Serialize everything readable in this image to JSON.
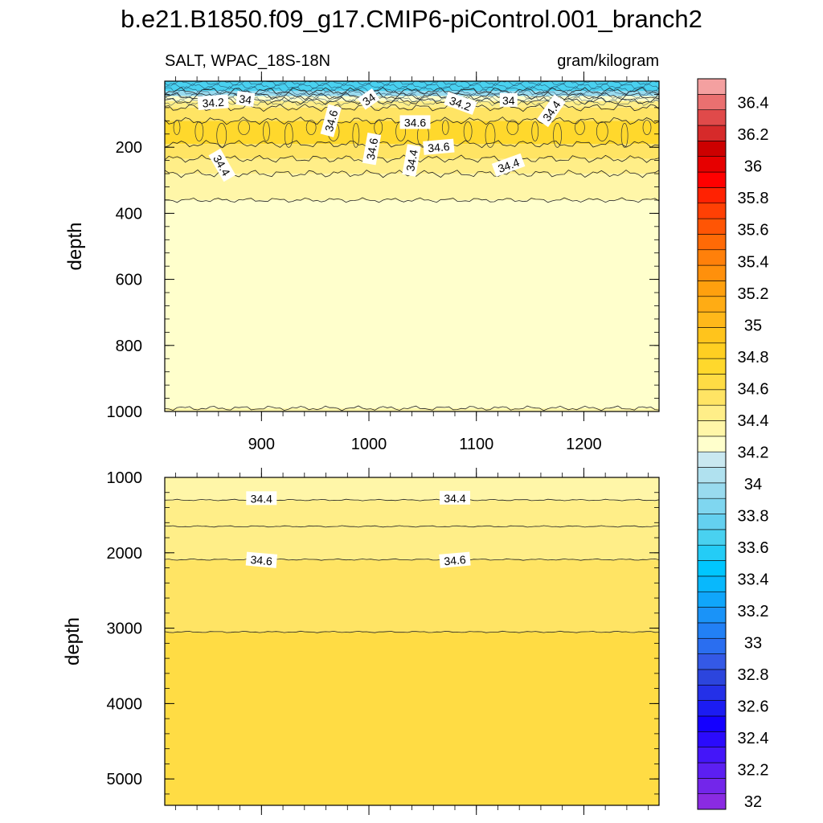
{
  "chart_data": {
    "type": "heatmap",
    "title": "b.e21.B1850.f09_g17.CMIP6-piControl.001_branch2",
    "left_string": "SALT, WPAC_18S-18N",
    "right_string": "gram/kilogram",
    "x_range": [
      810,
      1270
    ],
    "x_ticks": [
      "900",
      "1000",
      "1100",
      "1200"
    ],
    "x_tick_values": [
      900,
      1000,
      1100,
      1200
    ],
    "panels": [
      {
        "ylabel": "depth",
        "ylim": [
          0,
          1000
        ],
        "y_ticks": [
          "200",
          "400",
          "600",
          "800",
          "1000"
        ],
        "y_tick_values": [
          200,
          400,
          600,
          800,
          1000
        ],
        "bands": [
          {
            "top": 0,
            "bottom": 30,
            "value": 33.7
          },
          {
            "top": 30,
            "bottom": 45,
            "value": 34.05
          },
          {
            "top": 45,
            "bottom": 60,
            "value": 34.35
          },
          {
            "top": 60,
            "bottom": 80,
            "value": 34.5
          },
          {
            "top": 80,
            "bottom": 120,
            "value": 34.65
          },
          {
            "top": 120,
            "bottom": 190,
            "value": 34.8
          },
          {
            "top": 190,
            "bottom": 235,
            "value": 34.65
          },
          {
            "top": 235,
            "bottom": 280,
            "value": 34.55
          },
          {
            "top": 280,
            "bottom": 360,
            "value": 34.45
          },
          {
            "top": 360,
            "bottom": 990,
            "value": 34.3
          },
          {
            "top": 990,
            "bottom": 1000,
            "value": 34.45
          }
        ],
        "contour_labels": [
          {
            "text": "34.2",
            "x": 855,
            "depth": 65,
            "angle": -4
          },
          {
            "text": "34",
            "x": 885,
            "depth": 55,
            "angle": 8
          },
          {
            "text": "34.6",
            "x": 965,
            "depth": 120,
            "angle": -75
          },
          {
            "text": "34",
            "x": 1000,
            "depth": 55,
            "angle": -35
          },
          {
            "text": "34.6",
            "x": 1043,
            "depth": 125,
            "angle": 0
          },
          {
            "text": "34.2",
            "x": 1085,
            "depth": 68,
            "angle": 20
          },
          {
            "text": "34",
            "x": 1130,
            "depth": 58,
            "angle": 0
          },
          {
            "text": "34.4",
            "x": 1170,
            "depth": 90,
            "angle": -55
          },
          {
            "text": "34.6",
            "x": 1003,
            "depth": 205,
            "angle": -80
          },
          {
            "text": "34.6",
            "x": 1065,
            "depth": 200,
            "angle": -5
          },
          {
            "text": "34.4",
            "x": 1040,
            "depth": 240,
            "angle": -80
          },
          {
            "text": "34.4",
            "x": 1130,
            "depth": 255,
            "angle": -20
          },
          {
            "text": "34.4",
            "x": 863,
            "depth": 255,
            "angle": 60
          }
        ]
      },
      {
        "ylabel": "depth",
        "ylim": [
          1000,
          5350
        ],
        "y_ticks": [
          "1000",
          "2000",
          "3000",
          "4000",
          "5000"
        ],
        "y_tick_values": [
          1000,
          2000,
          3000,
          4000,
          5000
        ],
        "bands": [
          {
            "top": 1000,
            "bottom": 1300,
            "value": 34.45
          },
          {
            "top": 1300,
            "bottom": 1650,
            "value": 34.55
          },
          {
            "top": 1650,
            "bottom": 2090,
            "value": 34.55
          },
          {
            "top": 2090,
            "bottom": 3050,
            "value": 34.65
          },
          {
            "top": 3050,
            "bottom": 5350,
            "value": 34.7
          }
        ],
        "contour_labels": [
          {
            "text": "34.4",
            "x": 900,
            "depth": 1280,
            "angle": 0
          },
          {
            "text": "34.4",
            "x": 1080,
            "depth": 1275,
            "angle": 0
          },
          {
            "text": "34.6",
            "x": 900,
            "depth": 2100,
            "angle": 5
          },
          {
            "text": "34.6",
            "x": 1080,
            "depth": 2100,
            "angle": -5
          }
        ]
      }
    ],
    "colorbar": {
      "min": 32,
      "max": 36.6,
      "step": 0.1,
      "tick_labels": [
        "32",
        "32.2",
        "32.4",
        "32.6",
        "32.8",
        "33",
        "33.2",
        "33.4",
        "33.6",
        "33.8",
        "34",
        "34.2",
        "34.4",
        "34.6",
        "34.8",
        "35",
        "35.2",
        "35.4",
        "35.6",
        "35.8",
        "36",
        "36.2",
        "36.4"
      ],
      "tick_values": [
        32,
        32.2,
        32.4,
        32.6,
        32.8,
        33,
        33.2,
        33.4,
        33.6,
        33.8,
        34,
        34.2,
        34.4,
        34.6,
        34.8,
        35,
        35.2,
        35.4,
        35.6,
        35.8,
        36,
        36.2,
        36.4
      ],
      "colors": [
        "#8a2be2",
        "#7326ea",
        "#5c1ff2",
        "#4416f9",
        "#2b0bfc",
        "#1400ff",
        "#1c1cf2",
        "#2430e8",
        "#2c45dd",
        "#3459e6",
        "#2a6ef0",
        "#2280f5",
        "#1a93f8",
        "#10a6fb",
        "#08b8fd",
        "#00c6ff",
        "#24ccf6",
        "#49d1f0",
        "#64d0f0",
        "#7fd6f0",
        "#99dbef",
        "#b0e1ef",
        "#c9e8f0",
        "#ffffcc",
        "#fff6a8",
        "#ffee88",
        "#ffe464",
        "#ffdc44",
        "#ffd82c",
        "#ffcf22",
        "#ffc41c",
        "#ffb81a",
        "#ffac14",
        "#ffa00e",
        "#ff900c",
        "#ff800a",
        "#ff6a06",
        "#ff5505",
        "#ff4004",
        "#ff2202",
        "#ff0000",
        "#e60000",
        "#cc0000",
        "#d62a2a",
        "#e04a4a",
        "#ea7070",
        "#f4a0a0"
      ]
    }
  }
}
